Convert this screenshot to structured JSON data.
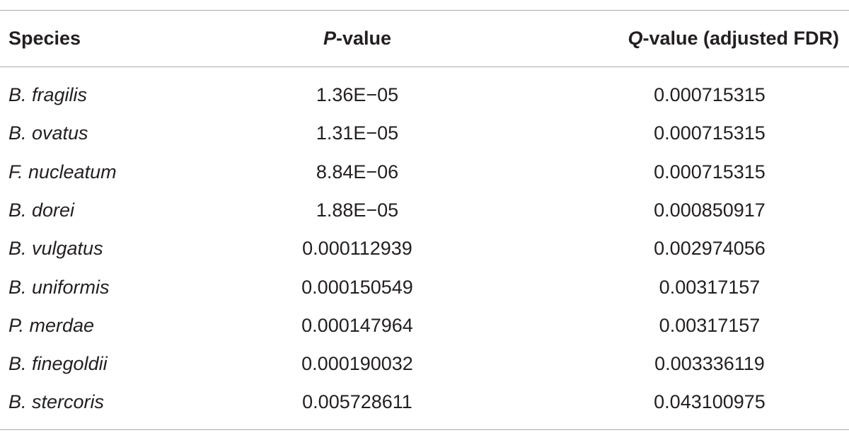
{
  "table": {
    "header": [
      {
        "text": "Species"
      },
      {
        "italic": "P",
        "text": "-value"
      },
      {
        "italic": "Q",
        "text": "-value (adjusted FDR)"
      }
    ],
    "rows": [
      [
        "B. fragilis",
        "1.36E−05",
        "0.000715315"
      ],
      [
        "B. ovatus",
        "1.31E−05",
        "0.000715315"
      ],
      [
        "F. nucleatum",
        "8.84E−06",
        "0.000715315"
      ],
      [
        "B. dorei",
        "1.88E−05",
        "0.000850917"
      ],
      [
        "B. vulgatus",
        "0.000112939",
        "0.002974056"
      ],
      [
        "B. uniformis",
        "0.000150549",
        "0.00317157"
      ],
      [
        "P. merdae",
        "0.000147964",
        "0.00317157"
      ],
      [
        "B. finegoldii",
        "0.000190032",
        "0.003336119"
      ],
      [
        "B. stercoris",
        "0.005728611",
        "0.043100975"
      ]
    ]
  }
}
